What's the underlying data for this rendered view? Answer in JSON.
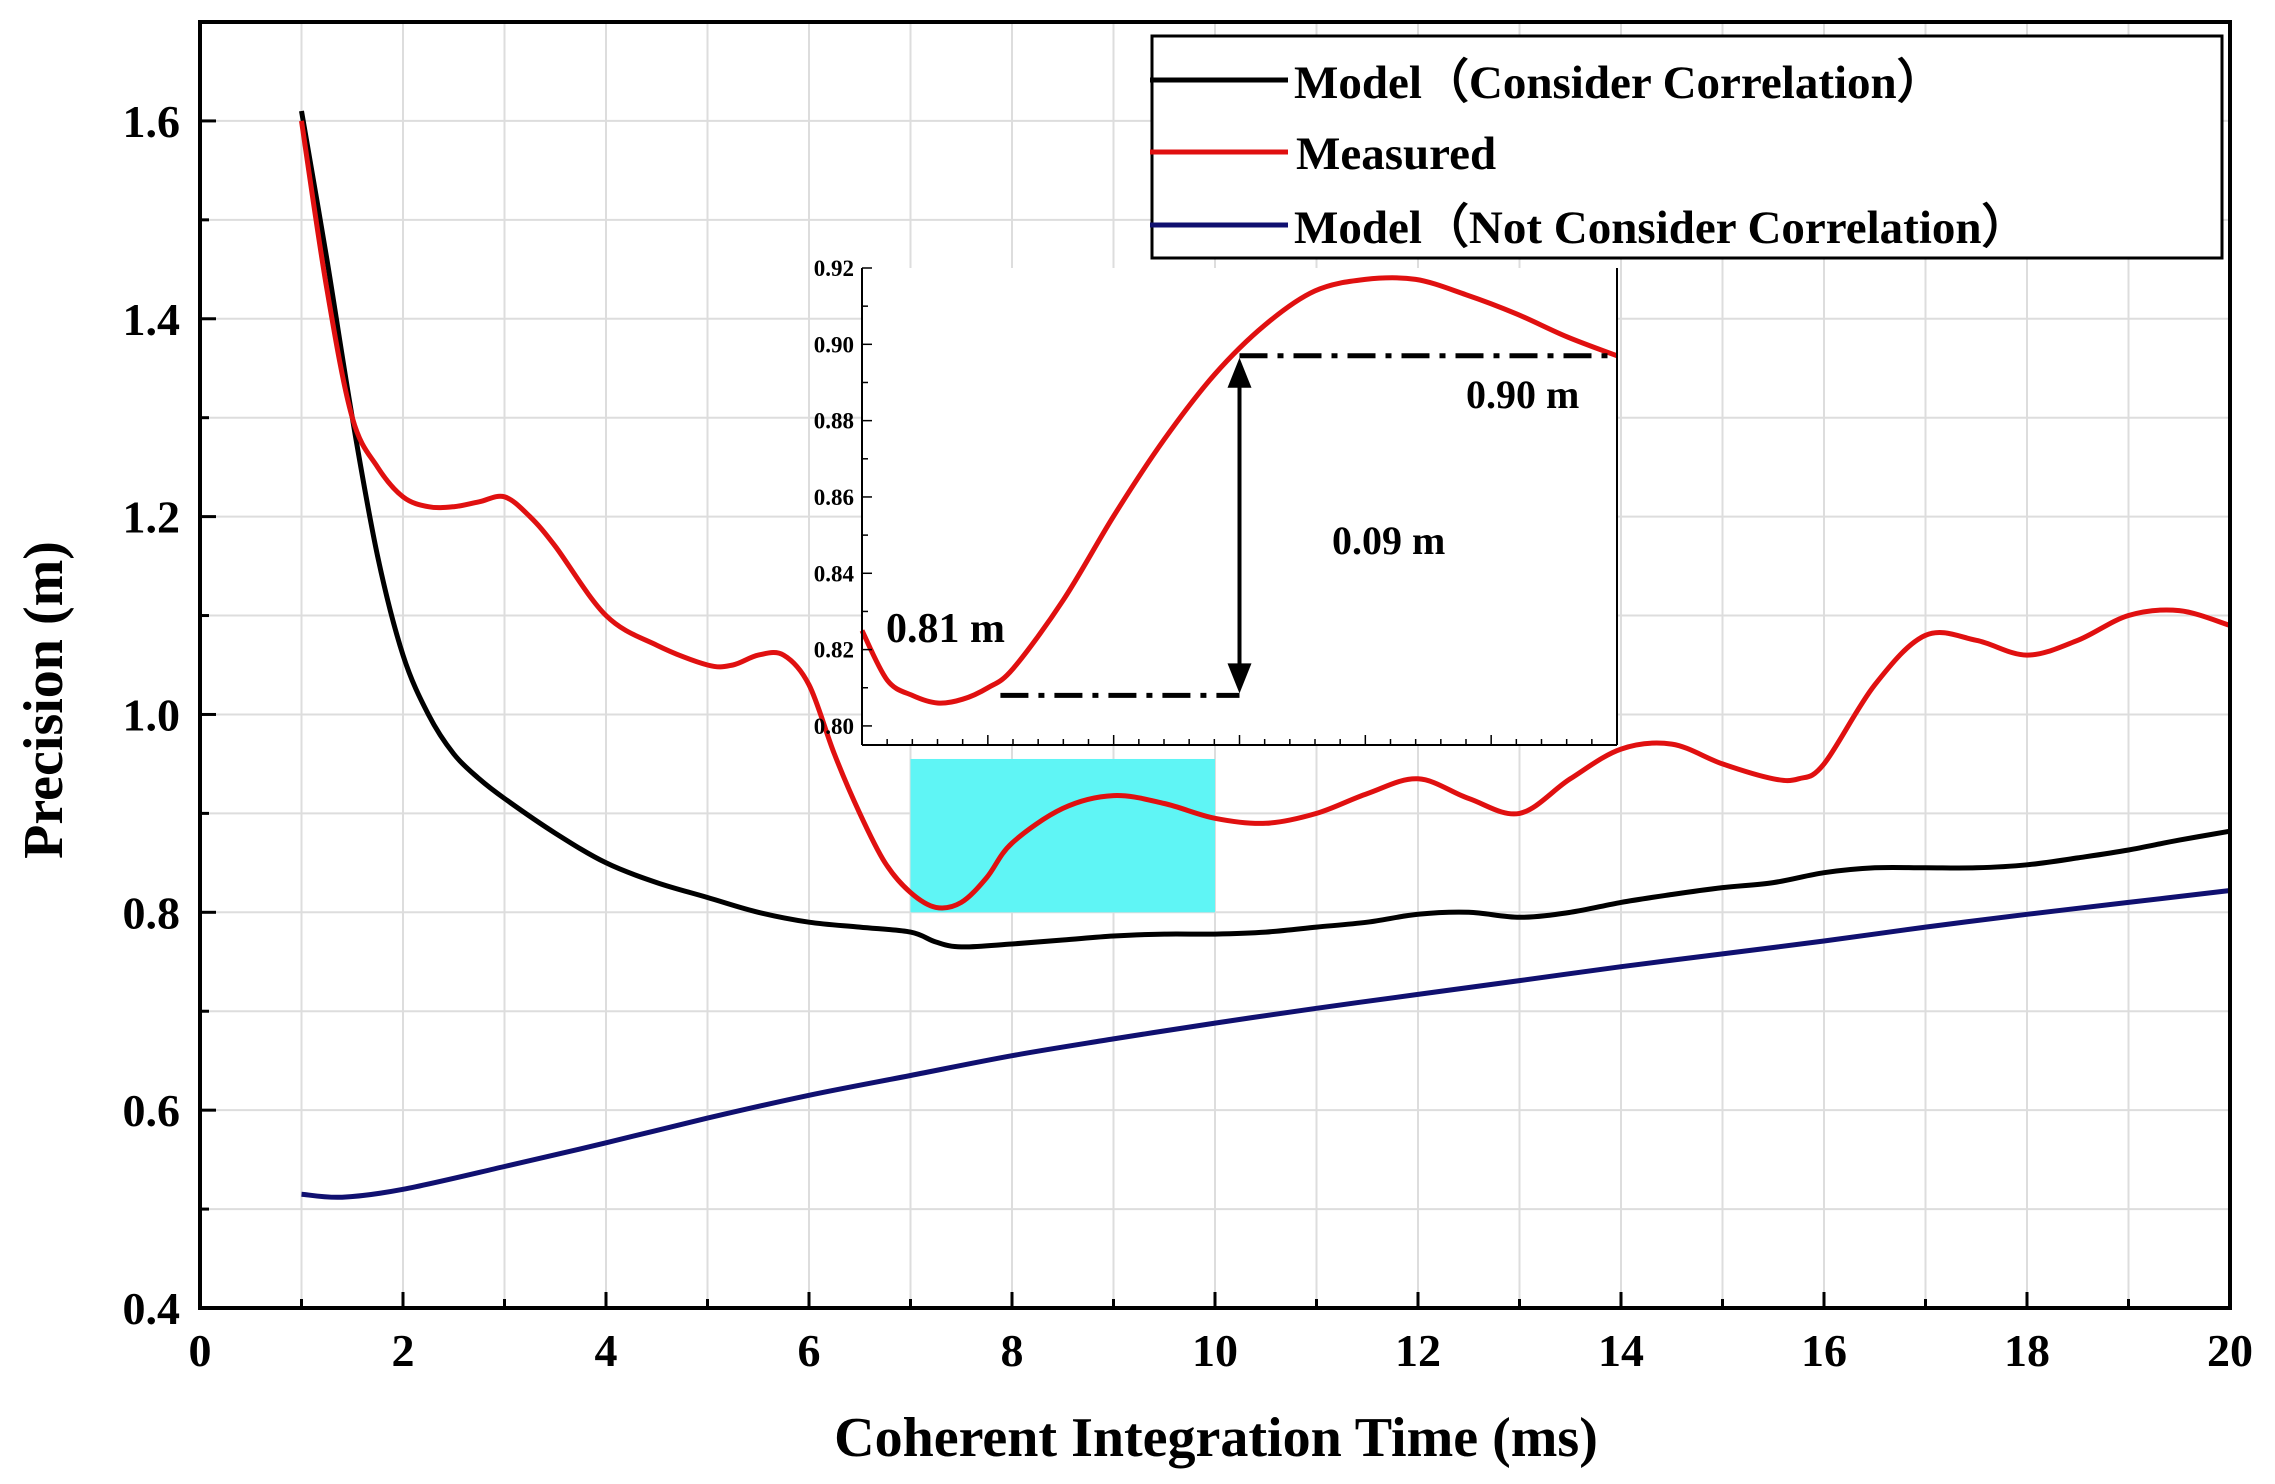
{
  "chart_data": {
    "type": "line",
    "xlabel": "Coherent Integration Time (ms)",
    "ylabel": "Precision (m)",
    "xlim": [
      0,
      20
    ],
    "ylim": [
      0.4,
      1.7
    ],
    "x_ticks": [
      "0",
      "2",
      "4",
      "6",
      "8",
      "10",
      "12",
      "14",
      "16",
      "18",
      "20"
    ],
    "y_ticks": [
      "0.4",
      "0.6",
      "0.8",
      "1.0",
      "1.2",
      "1.4",
      "1.6"
    ],
    "grid": true,
    "legend_position": "top-right",
    "series": [
      {
        "name": "Model（Consider Correlation）",
        "color": "#000000",
        "x": [
          1,
          1.25,
          1.5,
          1.75,
          2,
          2.25,
          2.5,
          2.75,
          3,
          3.5,
          4,
          4.5,
          5,
          5.5,
          6,
          6.5,
          7,
          7.25,
          7.5,
          8,
          8.5,
          9,
          9.5,
          10,
          10.5,
          11,
          11.5,
          12,
          12.5,
          13,
          13.5,
          14,
          14.5,
          15,
          15.5,
          16,
          16.5,
          17,
          17.5,
          18,
          18.5,
          19,
          19.5,
          20
        ],
        "y": [
          1.61,
          1.46,
          1.3,
          1.16,
          1.06,
          1.0,
          0.96,
          0.935,
          0.915,
          0.88,
          0.85,
          0.83,
          0.815,
          0.8,
          0.79,
          0.785,
          0.78,
          0.77,
          0.765,
          0.768,
          0.772,
          0.776,
          0.778,
          0.778,
          0.78,
          0.785,
          0.79,
          0.798,
          0.8,
          0.795,
          0.8,
          0.81,
          0.818,
          0.825,
          0.83,
          0.84,
          0.845,
          0.845,
          0.845,
          0.848,
          0.855,
          0.863,
          0.873,
          0.882
        ]
      },
      {
        "name": "Measured",
        "color": "#e01010",
        "x": [
          1,
          1.25,
          1.5,
          1.75,
          2,
          2.25,
          2.5,
          2.75,
          3,
          3.25,
          3.5,
          4,
          4.5,
          5,
          5.25,
          5.5,
          5.75,
          6,
          6.25,
          6.5,
          6.75,
          7,
          7.25,
          7.5,
          7.75,
          8,
          8.5,
          9,
          9.5,
          10,
          10.5,
          11,
          11.5,
          12,
          12.5,
          13,
          13.5,
          14,
          14.5,
          15,
          15.5,
          15.75,
          16,
          16.5,
          17,
          17.5,
          18,
          18.5,
          19,
          19.5,
          20
        ],
        "y": [
          1.6,
          1.43,
          1.3,
          1.25,
          1.22,
          1.21,
          1.21,
          1.215,
          1.22,
          1.2,
          1.17,
          1.1,
          1.07,
          1.05,
          1.05,
          1.06,
          1.06,
          1.03,
          0.96,
          0.9,
          0.85,
          0.82,
          0.805,
          0.81,
          0.835,
          0.87,
          0.905,
          0.918,
          0.91,
          0.895,
          0.89,
          0.9,
          0.92,
          0.935,
          0.915,
          0.9,
          0.935,
          0.965,
          0.97,
          0.95,
          0.935,
          0.935,
          0.95,
          1.03,
          1.08,
          1.075,
          1.06,
          1.075,
          1.1,
          1.105,
          1.09
        ]
      },
      {
        "name": "Model（Not Consider Correlation）",
        "color": "#101070",
        "x": [
          1,
          1.4,
          2,
          3,
          4,
          5,
          6,
          7,
          8,
          9,
          10,
          11,
          12,
          13,
          14,
          15,
          16,
          17,
          18,
          19,
          20
        ],
        "y": [
          0.515,
          0.512,
          0.52,
          0.543,
          0.567,
          0.592,
          0.615,
          0.635,
          0.655,
          0.672,
          0.688,
          0.703,
          0.717,
          0.731,
          0.745,
          0.758,
          0.771,
          0.785,
          0.798,
          0.81,
          0.822
        ]
      }
    ],
    "highlight_box": {
      "x": [
        7,
        10
      ],
      "y": [
        0.8,
        0.955
      ],
      "color": "#5ff5f5"
    },
    "inset": {
      "xlim": [
        7,
        10
      ],
      "ylim": [
        0.795,
        0.92
      ],
      "y_ticks": [
        "0.80",
        "0.82",
        "0.84",
        "0.86",
        "0.88",
        "0.90",
        "0.92"
      ],
      "series_x": [
        7,
        7.1,
        7.2,
        7.3,
        7.4,
        7.5,
        7.6,
        7.8,
        8,
        8.2,
        8.4,
        8.6,
        8.8,
        9,
        9.2,
        9.4,
        9.6,
        9.8,
        10
      ],
      "series_y": [
        0.825,
        0.812,
        0.808,
        0.806,
        0.807,
        0.81,
        0.815,
        0.833,
        0.855,
        0.875,
        0.892,
        0.905,
        0.914,
        0.917,
        0.917,
        0.913,
        0.908,
        0.902,
        0.897
      ],
      "annotations": {
        "min_label": "0.81 m",
        "max_label": "0.90 m",
        "diff_label": "0.09 m",
        "min_value": 0.808,
        "max_value": 0.897,
        "arrow_x": 8.5
      }
    }
  }
}
